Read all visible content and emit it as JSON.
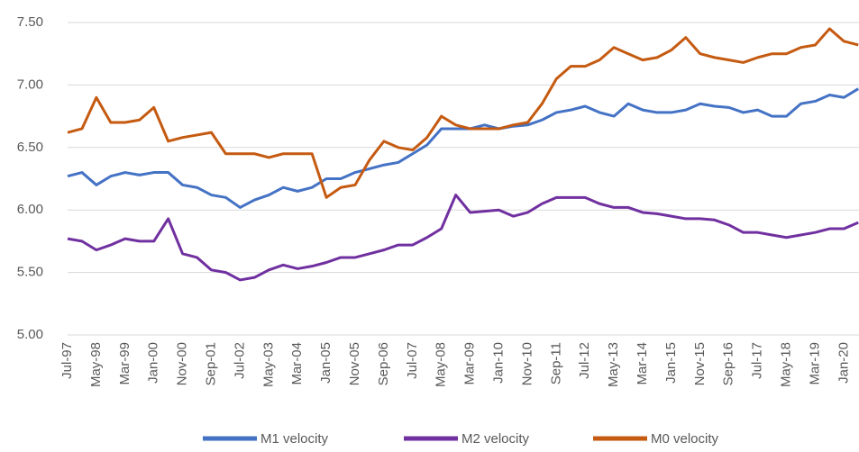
{
  "chart_data": {
    "type": "line",
    "categories": [
      "Jul-97",
      null,
      "May-98",
      null,
      "Mar-99",
      null,
      "Jan-00",
      null,
      "Nov-00",
      null,
      "Sep-01",
      null,
      "Jul-02",
      null,
      "May-03",
      null,
      "Mar-04",
      null,
      "Jan-05",
      null,
      "Nov-05",
      null,
      "Sep-06",
      null,
      "Jul-07",
      null,
      "May-08",
      null,
      "Mar-09",
      null,
      "Jan-10",
      null,
      "Nov-10",
      null,
      "Sep-11",
      null,
      "Jul-12",
      null,
      "May-13",
      null,
      "Mar-14",
      null,
      "Jan-15",
      null,
      "Nov-15",
      null,
      "Sep-16",
      null,
      "Jul-17",
      null,
      "May-18",
      null,
      "Mar-19",
      null,
      "Jan-20",
      null
    ],
    "series": [
      {
        "name": "M1 velocity",
        "color": "#4472c4",
        "values": [
          6.27,
          6.3,
          6.2,
          6.27,
          6.3,
          6.28,
          6.3,
          6.3,
          6.2,
          6.18,
          6.12,
          6.1,
          6.02,
          6.08,
          6.12,
          6.18,
          6.15,
          6.18,
          6.25,
          6.25,
          6.3,
          6.33,
          6.36,
          6.38,
          6.45,
          6.52,
          6.65,
          6.65,
          6.65,
          6.68,
          6.65,
          6.67,
          6.68,
          6.72,
          6.78,
          6.8,
          6.83,
          6.78,
          6.75,
          6.85,
          6.8,
          6.78,
          6.78,
          6.8,
          6.85,
          6.83,
          6.82,
          6.78,
          6.8,
          6.75,
          6.75,
          6.85,
          6.87,
          6.92,
          6.9,
          6.97
        ]
      },
      {
        "name": "M2 velocity",
        "color": "#7030a0",
        "values": [
          5.77,
          5.75,
          5.68,
          5.72,
          5.77,
          5.75,
          5.75,
          5.93,
          5.65,
          5.62,
          5.52,
          5.5,
          5.44,
          5.46,
          5.52,
          5.56,
          5.53,
          5.55,
          5.58,
          5.62,
          5.62,
          5.65,
          5.68,
          5.72,
          5.72,
          5.78,
          5.85,
          6.12,
          5.98,
          5.99,
          6.0,
          5.95,
          5.98,
          6.05,
          6.1,
          6.1,
          6.1,
          6.05,
          6.02,
          6.02,
          5.98,
          5.97,
          5.95,
          5.93,
          5.93,
          5.92,
          5.88,
          5.82,
          5.82,
          5.8,
          5.78,
          5.8,
          5.82,
          5.85,
          5.85,
          5.9
        ]
      },
      {
        "name": "M0 velocity",
        "color": "#c55a11",
        "values": [
          6.62,
          6.65,
          6.9,
          6.7,
          6.7,
          6.72,
          6.82,
          6.55,
          6.58,
          6.6,
          6.62,
          6.45,
          6.45,
          6.45,
          6.42,
          6.45,
          6.45,
          6.45,
          6.1,
          6.18,
          6.2,
          6.4,
          6.55,
          6.5,
          6.48,
          6.58,
          6.75,
          6.68,
          6.65,
          6.65,
          6.65,
          6.68,
          6.7,
          6.85,
          7.05,
          7.15,
          7.15,
          7.2,
          7.3,
          7.25,
          7.2,
          7.22,
          7.28,
          7.38,
          7.25,
          7.22,
          7.2,
          7.18,
          7.22,
          7.25,
          7.25,
          7.3,
          7.32,
          7.45,
          7.35,
          7.32
        ]
      }
    ],
    "ylim": [
      5,
      7.5
    ],
    "yticks": [
      {
        "value": 5,
        "label": "5.00"
      },
      {
        "value": 5.5,
        "label": "5.50"
      },
      {
        "value": 6,
        "label": "6.00"
      },
      {
        "value": 6.5,
        "label": "6.50"
      },
      {
        "value": 7,
        "label": "7.00"
      },
      {
        "value": 7.5,
        "label": "7.50"
      }
    ],
    "grid": true,
    "legend": "bottom"
  }
}
